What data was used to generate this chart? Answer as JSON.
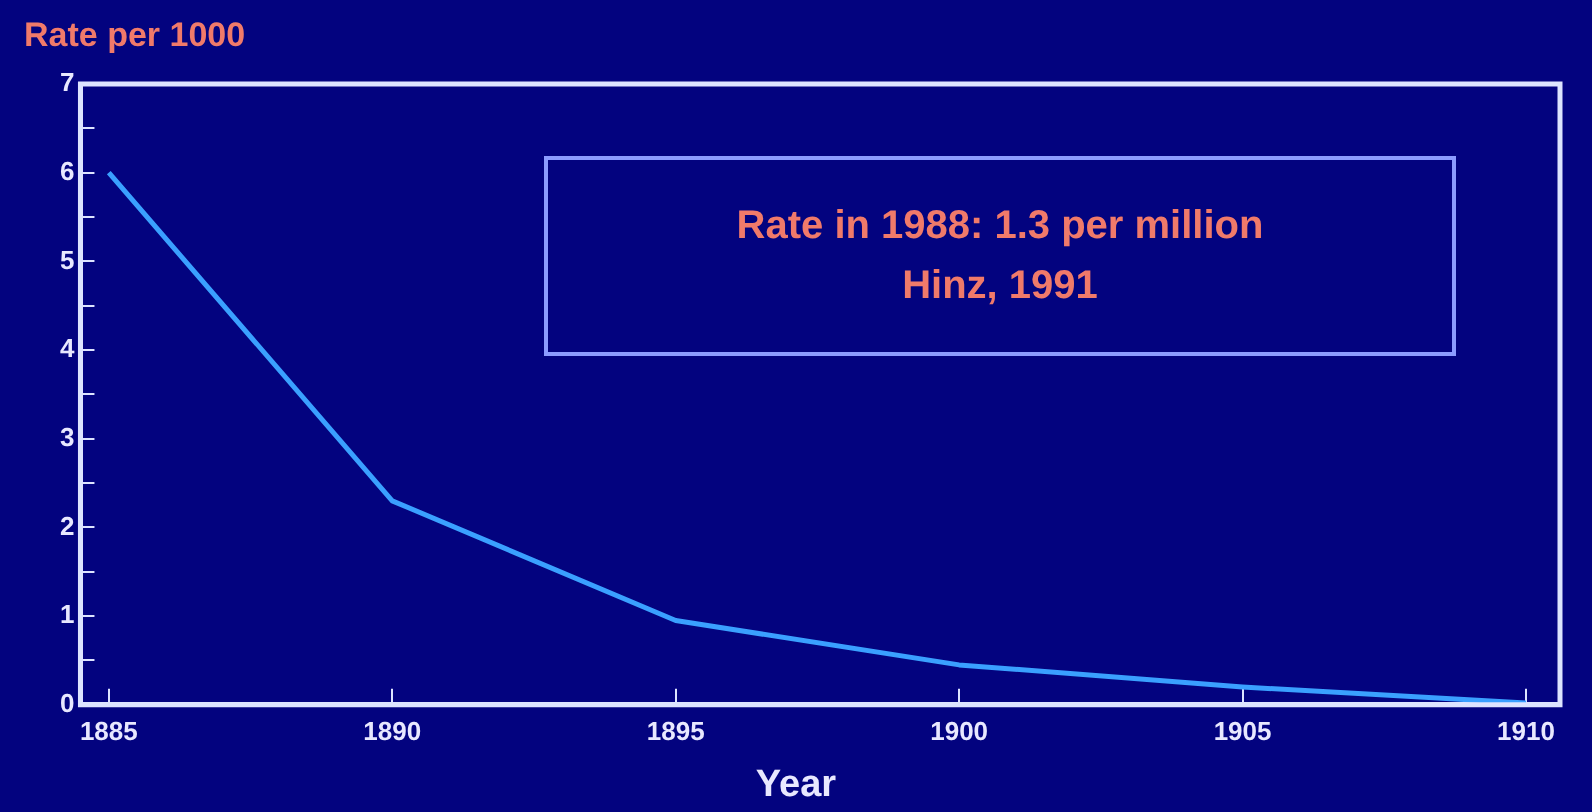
{
  "chart_data": {
    "type": "line",
    "xlabel": "Year",
    "ylabel": "Rate per 1000",
    "x": [
      1885,
      1890,
      1895,
      1900,
      1905,
      1910
    ],
    "series": [
      {
        "color": "#3aa0ff",
        "values": [
          6.0,
          2.3,
          0.95,
          0.45,
          0.2,
          0.02
        ]
      }
    ],
    "xlim": [
      1884.5,
      1910.6
    ],
    "xticks": [
      1885,
      1890,
      1895,
      1900,
      1905,
      1910
    ],
    "ylim": [
      0,
      7
    ],
    "yticks": [
      0,
      {
        "value": 0.5,
        "label": null
      },
      1,
      {
        "value": 1.5,
        "label": null
      },
      2,
      {
        "value": 2.5,
        "label": null
      },
      3,
      {
        "value": 3.5,
        "label": null
      },
      4,
      {
        "value": 4.5,
        "label": null
      },
      5,
      {
        "value": 5.5,
        "label": null
      },
      6,
      {
        "value": 6.5,
        "label": null
      },
      7
    ],
    "annotations": [
      "Rate in 1988: 1.3 per million",
      "Hinz, 1991"
    ],
    "grid": false,
    "legend": false,
    "marker": "none",
    "line_style": "solid"
  }
}
